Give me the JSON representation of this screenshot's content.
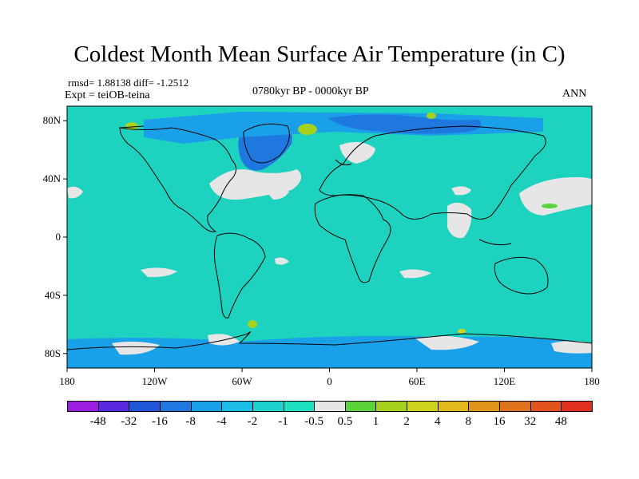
{
  "title": "Coldest Month Mean Surface Air Temperature (in C)",
  "stats": "rmsd= 1.88138  diff= -1.2512",
  "experiment": "Expt = teiOB-teina",
  "period": "0780kyr BP - 0000kyr BP",
  "season": "ANN",
  "map": {
    "projection": "cylindrical equidistant",
    "lon_range": [
      -180,
      180
    ],
    "lat_range": [
      -90,
      90
    ],
    "lat_ticks": [
      "80N",
      "40N",
      "0",
      "40S",
      "80S"
    ],
    "lon_ticks": [
      "180",
      "120W",
      "60W",
      "0",
      "60E",
      "120E",
      "180"
    ],
    "background_color": "#1ed2c0",
    "coast_color": "#000000"
  },
  "colorbar": {
    "labels": [
      "-48",
      "-32",
      "-16",
      "-8",
      "-4",
      "-2",
      "-1",
      "-0.5",
      "0.5",
      "1",
      "2",
      "4",
      "8",
      "16",
      "32",
      "48"
    ],
    "colors": [
      "#9a1de0",
      "#5a2ae0",
      "#2156d6",
      "#1e78e0",
      "#1aa0e8",
      "#1bbce6",
      "#1dd2cf",
      "#1ee0c0",
      "#e6e6e6",
      "#5ad43a",
      "#a6d21e",
      "#cfd21e",
      "#e2b91a",
      "#e0941a",
      "#e0741e",
      "#e2541e",
      "#e2301e"
    ]
  }
}
